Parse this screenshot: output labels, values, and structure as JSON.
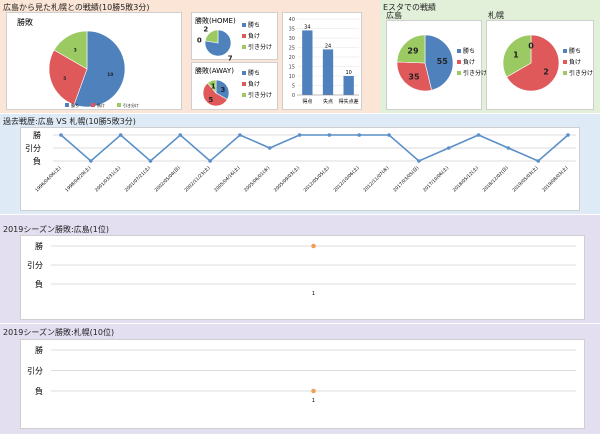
{
  "colors": {
    "win": "#4f81bd",
    "loss": "#e0595a",
    "draw": "#9bca62",
    "sec1_bg": "#fbe5d6",
    "sec2_bg": "#e2f0d9",
    "sec3_bg": "#deebf7",
    "sec4_bg": "#e3dff0",
    "line": "#5b8fc8",
    "marker": "#f0a057"
  },
  "sections": {
    "overview_title": "広島から見た札幌との戦績(10勝5敗3分)",
    "estadium_title": "Eスタでの戦績",
    "history_title": "過去戦歴:広島 VS 札幌(10勝5敗3分)",
    "season_hiroshima_title": "2019シーズン勝敗:広島(1位)",
    "season_sapporo_title": "2019シーズン勝敗:札幌(10位)"
  },
  "chart_data": [
    {
      "type": "pie",
      "title": "勝敗",
      "labels": [
        "勝ち",
        "負け",
        "引き分け"
      ],
      "values": [
        10,
        5,
        3
      ],
      "legend": "bottom"
    },
    {
      "type": "pie",
      "title": "勝敗(HOME)",
      "labels": [
        "勝ち",
        "負け",
        "引き分け"
      ],
      "values": [
        7,
        0,
        2
      ],
      "legend": "right"
    },
    {
      "type": "pie",
      "title": "勝敗(AWAY)",
      "labels": [
        "勝ち",
        "負け",
        "引き分け"
      ],
      "values": [
        3,
        5,
        1
      ],
      "legend": "right"
    },
    {
      "type": "bar",
      "categories": [
        "得点",
        "失点",
        "得失点差"
      ],
      "values": [
        34,
        24,
        10
      ],
      "ylim": [
        0,
        40
      ],
      "yticks": [
        0,
        5,
        10,
        15,
        20,
        25,
        30,
        35,
        40
      ]
    },
    {
      "type": "pie",
      "title": "広島",
      "labels": [
        "勝ち",
        "負け",
        "引き分け"
      ],
      "values": [
        55,
        35,
        29
      ],
      "legend": "right"
    },
    {
      "type": "pie",
      "title": "札幌",
      "labels": [
        "勝ち",
        "負け",
        "引き分け"
      ],
      "values": [
        0,
        2,
        1
      ],
      "legend": "right"
    },
    {
      "type": "line",
      "title": "",
      "ycategories": [
        "負",
        "引分",
        "勝"
      ],
      "x": [
        "1996/04/06(土)",
        "1998/04/29(土)",
        "2001/03/31(土)",
        "2001/07/21(土)",
        "2002/05/04(日)",
        "2002/11/23(土)",
        "2005/04/16(土)",
        "2005/06/01(水)",
        "2005/09/03(土)",
        "2012/05/05(土)",
        "2012/10/06(土)",
        "2012/11/07(水)",
        "2017/03/05(日)",
        "2017/10/06(土)",
        "2018/05/12(土)",
        "2018/12/02(日)",
        "2019/05/03(土)",
        "2019/08/03(土)"
      ],
      "values": [
        "勝",
        "負",
        "勝",
        "負",
        "勝",
        "負",
        "勝",
        "引分",
        "勝",
        "勝",
        "勝",
        "勝",
        "負",
        "引分",
        "勝",
        "引分",
        "負",
        "勝"
      ]
    },
    {
      "type": "line",
      "title": "",
      "ycategories": [
        "負",
        "引分",
        "勝"
      ],
      "x": [
        "1"
      ],
      "values": [
        "勝"
      ]
    },
    {
      "type": "line",
      "title": "",
      "ycategories": [
        "負",
        "引分",
        "勝"
      ],
      "x": [
        "1"
      ],
      "values": [
        "負"
      ]
    }
  ]
}
